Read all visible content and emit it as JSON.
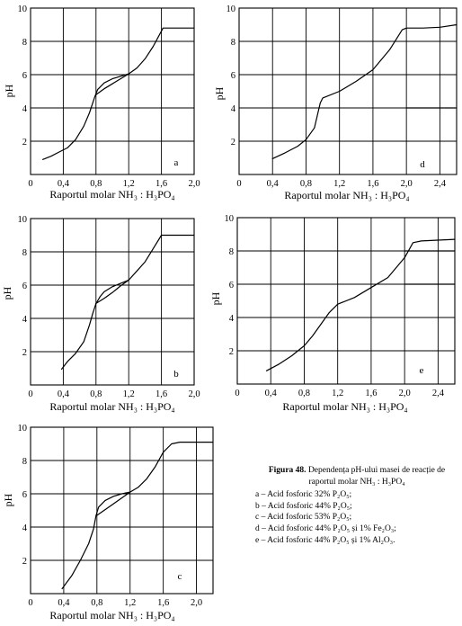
{
  "chart_data": [
    {
      "type": "line",
      "panel_letter": "a",
      "xlabel": "Raportul molar NH₃ : H₃PO₄",
      "ylabel": "pH",
      "xlim": [
        0,
        2.0
      ],
      "ylim": [
        0,
        10
      ],
      "xticks": [
        0,
        0.4,
        0.8,
        1.2,
        1.6,
        2.0
      ],
      "xtick_labels": [
        "0",
        "0,4",
        "0,8",
        "1,2",
        "1,6",
        "2,0"
      ],
      "yticks": [
        2,
        4,
        6,
        8,
        10
      ],
      "ytick_labels": [
        "2",
        "4",
        "6",
        "8",
        "10"
      ],
      "grid": true,
      "series": [
        {
          "x": [
            0.15,
            0.25,
            0.35,
            0.45,
            0.55,
            0.65,
            0.72,
            0.78,
            0.82,
            0.9,
            1.0,
            1.1,
            1.2,
            1.3,
            1.4,
            1.5,
            1.62,
            1.8,
            2.0
          ],
          "y": [
            0.9,
            1.1,
            1.35,
            1.6,
            2.1,
            2.9,
            3.7,
            4.6,
            5.1,
            5.5,
            5.75,
            5.9,
            6.05,
            6.4,
            6.95,
            7.7,
            8.8,
            8.8,
            8.8
          ]
        },
        {
          "x": [
            0.8,
            0.9,
            1.0,
            1.1,
            1.2
          ],
          "y": [
            4.8,
            5.15,
            5.45,
            5.75,
            6.05
          ]
        }
      ]
    },
    {
      "type": "line",
      "panel_letter": "d",
      "xlabel": "Raportul molar NH₃ : H₃PO₄",
      "ylabel": "pH",
      "xlim": [
        0,
        2.6
      ],
      "ylim": [
        0,
        10
      ],
      "xticks": [
        0,
        0.4,
        0.8,
        1.2,
        1.6,
        2.0,
        2.4
      ],
      "xtick_labels": [
        "0",
        "0,4",
        "0,8",
        "1,2",
        "1,6",
        "2,0",
        "2,4"
      ],
      "yticks": [
        2,
        4,
        6,
        8,
        10
      ],
      "ytick_labels": [
        "2",
        "4",
        "6",
        "8",
        "10"
      ],
      "grid": true,
      "series": [
        {
          "x": [
            0.4,
            0.55,
            0.7,
            0.8,
            0.9,
            0.97,
            1.0,
            1.2,
            1.4,
            1.6,
            1.8,
            1.95,
            2.0,
            2.2,
            2.4,
            2.6
          ],
          "y": [
            0.95,
            1.3,
            1.7,
            2.1,
            2.8,
            4.3,
            4.6,
            5.0,
            5.6,
            6.3,
            7.5,
            8.7,
            8.8,
            8.8,
            8.85,
            9.0
          ]
        },
        {
          "x": [
            2.0,
            2.6
          ],
          "y": [
            4.0,
            4.0
          ]
        }
      ]
    },
    {
      "type": "line",
      "panel_letter": "b",
      "xlabel": "Raportul molar NH₃ : H₃PO₄",
      "ylabel": "pH",
      "xlim": [
        0,
        2.0
      ],
      "ylim": [
        0,
        10
      ],
      "xticks": [
        0,
        0.4,
        0.8,
        1.2,
        1.6,
        2.0
      ],
      "xtick_labels": [
        "0",
        "0,4",
        "0,8",
        "1,2",
        "1,6",
        "2,0"
      ],
      "yticks": [
        2,
        4,
        6,
        8,
        10
      ],
      "ytick_labels": [
        "2",
        "4",
        "6",
        "8",
        "10"
      ],
      "grid": true,
      "series": [
        {
          "x": [
            0.38,
            0.45,
            0.55,
            0.65,
            0.72,
            0.76,
            0.8,
            0.85,
            0.9,
            1.0,
            1.1,
            1.2,
            1.3,
            1.4,
            1.5,
            1.6,
            1.8,
            2.0
          ],
          "y": [
            0.95,
            1.4,
            1.9,
            2.6,
            3.6,
            4.3,
            4.9,
            5.3,
            5.6,
            5.9,
            6.1,
            6.3,
            6.85,
            7.4,
            8.2,
            9.0,
            9.0,
            9.0
          ]
        },
        {
          "x": [
            0.8,
            0.9,
            1.0,
            1.1,
            1.2
          ],
          "y": [
            4.9,
            5.2,
            5.55,
            5.95,
            6.3
          ]
        }
      ]
    },
    {
      "type": "line",
      "panel_letter": "e",
      "xlabel": "Raportul molar NH₃ : H₃PO₄",
      "ylabel": "pH",
      "xlim": [
        0,
        2.6
      ],
      "ylim": [
        0,
        10
      ],
      "xticks": [
        0,
        0.4,
        0.8,
        1.2,
        1.6,
        2.0,
        2.4
      ],
      "xtick_labels": [
        "0",
        "0,4",
        "0,8",
        "1,2",
        "1,6",
        "2,0",
        "2,4"
      ],
      "yticks": [
        2,
        4,
        6,
        8,
        10
      ],
      "ytick_labels": [
        "2",
        "4",
        "6",
        "8",
        "10"
      ],
      "grid": true,
      "series": [
        {
          "x": [
            0.35,
            0.5,
            0.65,
            0.8,
            0.9,
            1.0,
            1.1,
            1.2,
            1.4,
            1.6,
            1.8,
            2.0,
            2.1,
            2.2,
            2.4,
            2.6
          ],
          "y": [
            0.8,
            1.2,
            1.7,
            2.3,
            2.9,
            3.6,
            4.3,
            4.8,
            5.2,
            5.8,
            6.4,
            7.6,
            8.5,
            8.6,
            8.65,
            8.7
          ]
        },
        {
          "x": [
            2.0,
            2.6
          ],
          "y": [
            6.0,
            6.0
          ]
        },
        {
          "x": [
            2.0,
            2.6
          ],
          "y": [
            8.0,
            8.0
          ]
        }
      ]
    },
    {
      "type": "line",
      "panel_letter": "c",
      "xlabel": "Raportul molar NH₃ : H₃PO₄",
      "ylabel": "pH",
      "xlim": [
        0,
        2.2
      ],
      "ylim": [
        0,
        10
      ],
      "xticks": [
        0,
        0.4,
        0.8,
        1.2,
        1.6,
        2.0
      ],
      "xtick_labels": [
        "0",
        "0,4",
        "0,8",
        "1,2",
        "1,6",
        "2,0"
      ],
      "yticks": [
        2,
        4,
        6,
        8,
        10
      ],
      "ytick_labels": [
        "2",
        "4",
        "6",
        "8",
        "10"
      ],
      "grid": true,
      "series": [
        {
          "x": [
            0.38,
            0.5,
            0.6,
            0.7,
            0.76,
            0.79,
            0.82,
            0.9,
            1.0,
            1.1,
            1.2,
            1.3,
            1.4,
            1.5,
            1.6,
            1.7,
            1.8,
            2.0,
            2.2
          ],
          "y": [
            0.3,
            1.1,
            2.0,
            3.0,
            3.9,
            4.7,
            5.2,
            5.6,
            5.85,
            6.0,
            6.1,
            6.4,
            6.9,
            7.6,
            8.5,
            9.0,
            9.1,
            9.1,
            9.1
          ]
        },
        {
          "x": [
            0.8,
            0.9,
            1.0,
            1.1,
            1.2
          ],
          "y": [
            4.7,
            5.05,
            5.4,
            5.75,
            6.1
          ]
        }
      ]
    }
  ],
  "caption": {
    "label": "Figura 48.",
    "title": "Dependența pH-ului masei de reacție de raportul molar NH₃ : H₃PO₄",
    "items": [
      "a – Acid fosforic 32% P₂O₅;",
      "b – Acid fosforic 44% P₂O₅;",
      "c – Acid fosforic 53% P₂O₅;",
      "d – Acid fosforic 44% P₂O₅ și 1% Fe₂O₃;",
      "e – Acid fosforic 44% P₂O₅ și 1% Al₂O₃."
    ]
  }
}
